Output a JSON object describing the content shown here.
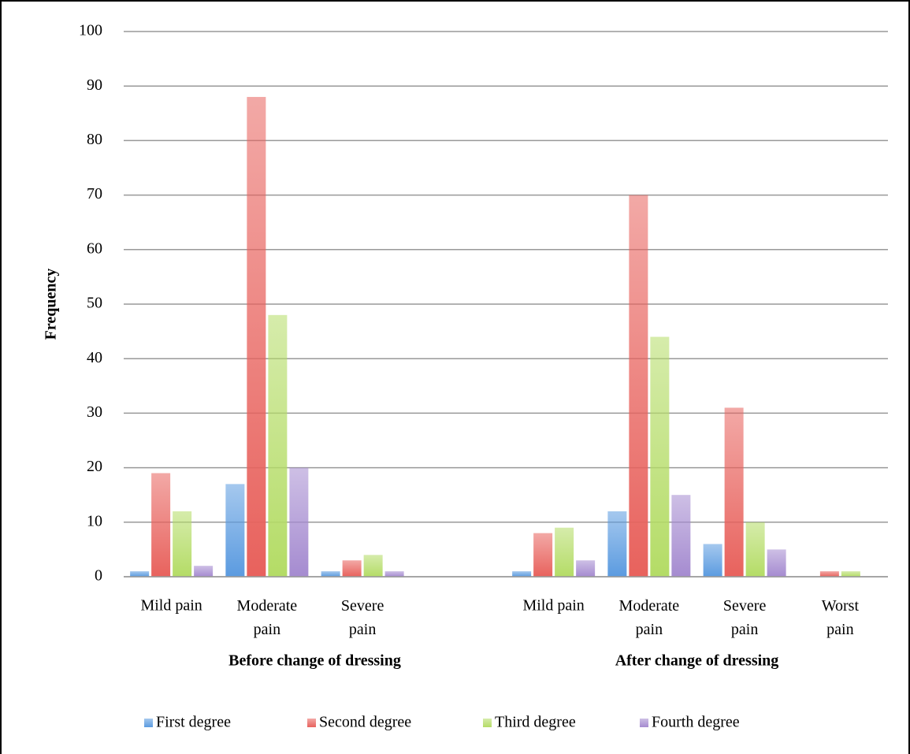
{
  "chart_data": {
    "type": "bar",
    "y_label": "Frequency",
    "categories": [
      "Mild pain",
      "Moderate pain",
      "Severe pain",
      null,
      "Mild pain",
      "Moderate pain",
      "Severe pain",
      "Worst pain"
    ],
    "x_groups": [
      "Before change of dressing",
      "After change of dressing"
    ],
    "series": [
      {
        "name": "First degree",
        "color": "#5b9be0",
        "values": [
          1,
          17,
          1,
          null,
          1,
          12,
          6,
          0
        ]
      },
      {
        "name": "Second degree",
        "color": "#e8625d",
        "values": [
          19,
          88,
          3,
          null,
          8,
          70,
          31,
          1
        ]
      },
      {
        "name": "Third degree",
        "color": "#b4dc66",
        "values": [
          12,
          48,
          4,
          null,
          9,
          44,
          10,
          1
        ]
      },
      {
        "name": "Fourth degree",
        "color": "#a58bd0",
        "values": [
          2,
          20,
          1,
          null,
          3,
          15,
          5,
          0
        ]
      }
    ],
    "ylim": [
      0,
      100
    ],
    "yticks": [
      0,
      10,
      20,
      30,
      40,
      50,
      60,
      70,
      80,
      90,
      100
    ],
    "grid": true,
    "legend": "bottom"
  }
}
